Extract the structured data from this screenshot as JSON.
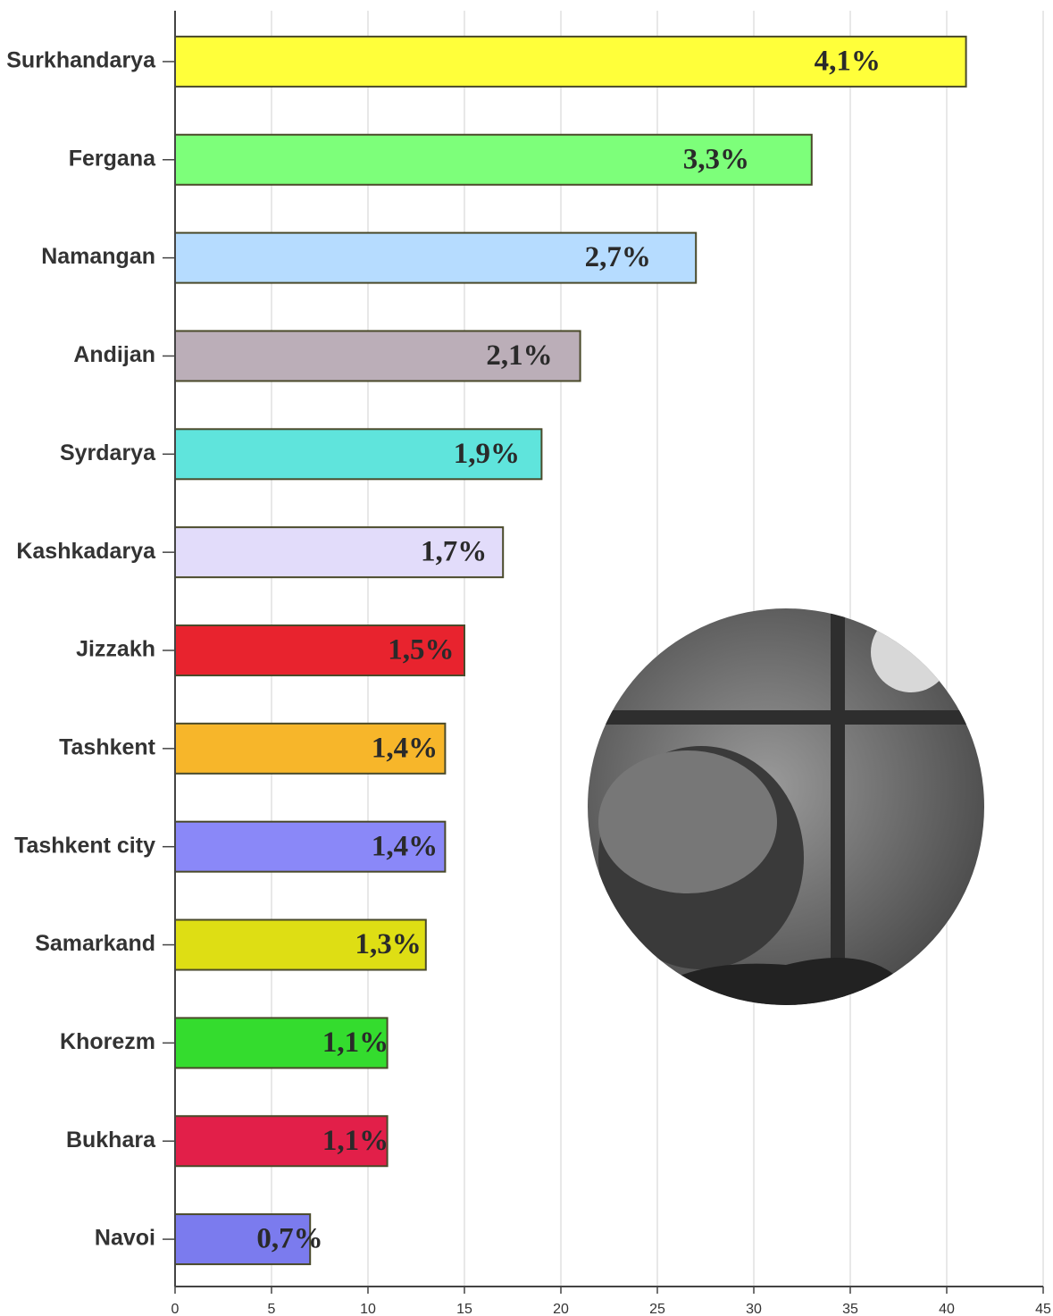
{
  "chart_data": {
    "type": "bar",
    "orientation": "horizontal",
    "categories": [
      "Surkhandarya",
      "Fergana",
      "Namangan",
      "Andijan",
      "Syrdarya",
      "Kashkadarya",
      "Jizzakh",
      "Tashkent",
      "Tashkent city",
      "Samarkand",
      "Khorezm",
      "Bukhara",
      "Navoi"
    ],
    "values": [
      41,
      33,
      27,
      21,
      19,
      17,
      15,
      14,
      14,
      13,
      11,
      11,
      7
    ],
    "value_labels": [
      "4,1%",
      "3,3%",
      "2,7%",
      "2,1%",
      "1,9%",
      "1,7%",
      "1,5%",
      "1,4%",
      "1,4%",
      "1,3%",
      "1,1%",
      "1,1%",
      "0,7%"
    ],
    "colors": [
      "#ffff3a",
      "#7dff7a",
      "#b6dcff",
      "#bbaeb8",
      "#5fe4dc",
      "#e2dcfa",
      "#e8232e",
      "#f7b62a",
      "#8a88f8",
      "#dede14",
      "#34dc2e",
      "#e21f49",
      "#7b7bee"
    ],
    "xlim": [
      0,
      45
    ],
    "xticks": [
      0,
      5,
      10,
      15,
      20,
      25,
      30,
      35,
      40,
      45
    ],
    "grid": true
  }
}
